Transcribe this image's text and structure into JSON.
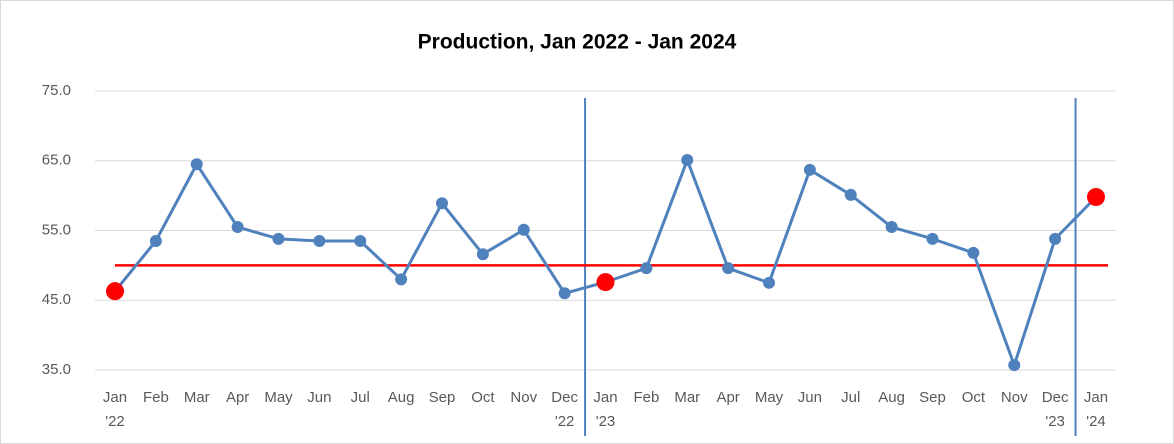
{
  "chart_data": {
    "type": "line",
    "title": "Production, Jan 2022 - Jan 2024",
    "categories": [
      [
        "Jan",
        "'22"
      ],
      [
        "Feb"
      ],
      [
        "Mar"
      ],
      [
        "Apr"
      ],
      [
        "May"
      ],
      [
        "Jun"
      ],
      [
        "Jul"
      ],
      [
        "Aug"
      ],
      [
        "Sep"
      ],
      [
        "Oct"
      ],
      [
        "Nov"
      ],
      [
        "Dec",
        "'22"
      ],
      [
        "Jan",
        "'23"
      ],
      [
        "Feb"
      ],
      [
        "Mar"
      ],
      [
        "Apr"
      ],
      [
        "May"
      ],
      [
        "Jun"
      ],
      [
        "Jul"
      ],
      [
        "Aug"
      ],
      [
        "Sep"
      ],
      [
        "Oct"
      ],
      [
        "Nov"
      ],
      [
        "Dec",
        "'23"
      ],
      [
        "Jan",
        "'24"
      ]
    ],
    "series": [
      {
        "color": "#4f81bd",
        "values": [
          46.3,
          53.5,
          64.5,
          55.5,
          53.8,
          53.5,
          53.5,
          48.0,
          58.9,
          51.6,
          55.1,
          46.0,
          47.6,
          49.6,
          65.1,
          49.6,
          47.5,
          63.7,
          60.1,
          55.5,
          53.8,
          51.8,
          35.7,
          53.8,
          59.8
        ]
      }
    ],
    "highlight_color": "#ff0000",
    "reference_line": {
      "value": 50,
      "color": "#ff0000"
    },
    "divider_color": "#4f81bd",
    "ylim": [
      35,
      75
    ],
    "yticks": [
      {
        "value": 35,
        "label": "35.0"
      },
      {
        "value": 45,
        "label": "45.0"
      },
      {
        "value": 55,
        "label": "55.0"
      },
      {
        "value": 65,
        "label": "65.0"
      },
      {
        "value": 75,
        "label": "75.0"
      }
    ],
    "grid": true
  }
}
